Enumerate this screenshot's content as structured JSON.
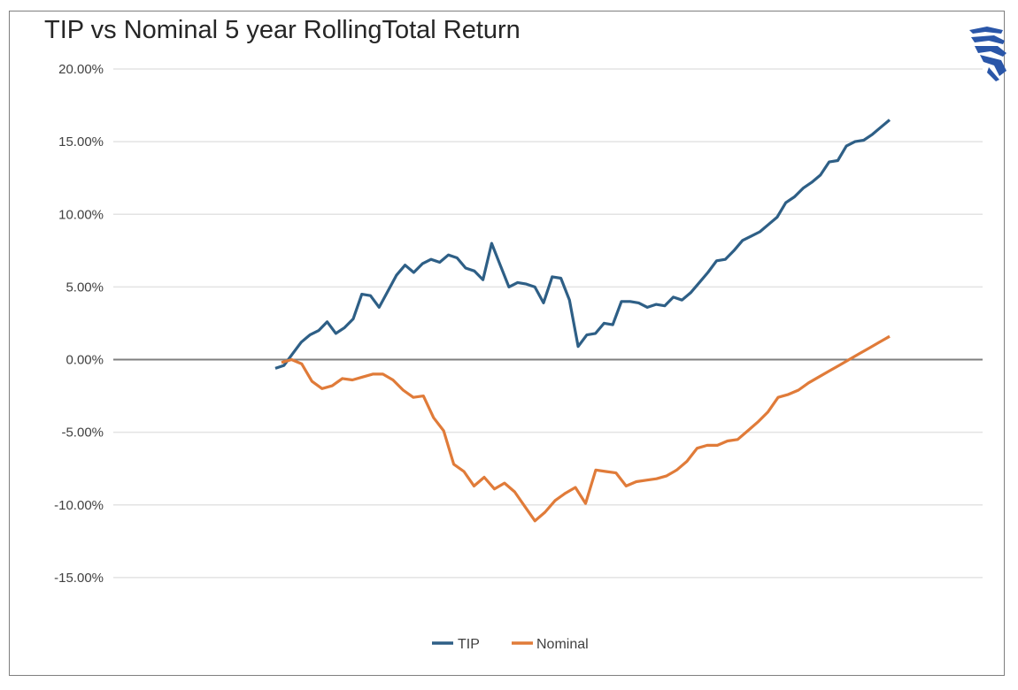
{
  "chart_data": {
    "type": "line",
    "title": "TIP vs Nominal 5 year RollingTotal Return",
    "xlabel": "",
    "ylabel": "",
    "ylim": [
      -0.2,
      0.2
    ],
    "yticks": [
      {
        "value": 0.2,
        "label": "20.00%"
      },
      {
        "value": 0.15,
        "label": "15.00%"
      },
      {
        "value": 0.1,
        "label": "10.00%"
      },
      {
        "value": 0.05,
        "label": "5.00%"
      },
      {
        "value": 0.0,
        "label": "0.00%"
      },
      {
        "value": -0.05,
        "label": "-5.00%"
      },
      {
        "value": -0.1,
        "label": "-10.00%"
      },
      {
        "value": -0.15,
        "label": "-15.00%"
      }
    ],
    "grid": true,
    "legend_position": "bottom",
    "series": [
      {
        "name": "TIP",
        "color": "#2e5f86",
        "values": [
          -0.006,
          -0.004,
          0.004,
          0.012,
          0.017,
          0.02,
          0.026,
          0.018,
          0.022,
          0.028,
          0.045,
          0.044,
          0.036,
          0.047,
          0.058,
          0.065,
          0.06,
          0.066,
          0.069,
          0.067,
          0.072,
          0.07,
          0.063,
          0.061,
          0.055,
          0.08,
          0.065,
          0.05,
          0.053,
          0.052,
          0.05,
          0.039,
          0.057,
          0.056,
          0.041,
          0.009,
          0.017,
          0.018,
          0.025,
          0.024,
          0.04,
          0.04,
          0.039,
          0.036,
          0.038,
          0.037,
          0.043,
          0.041,
          0.046,
          0.053,
          0.06,
          0.068,
          0.069,
          0.075,
          0.082,
          0.085,
          0.088,
          0.093,
          0.098,
          0.108,
          0.112,
          0.118,
          0.122,
          0.127,
          0.136,
          0.137,
          0.147,
          0.15,
          0.151,
          0.155,
          0.16,
          0.165
        ]
      },
      {
        "name": "Nominal",
        "color": "#e07b39",
        "values": [
          -0.002,
          0.0,
          -0.003,
          -0.015,
          -0.02,
          -0.018,
          -0.013,
          -0.014,
          -0.012,
          -0.01,
          -0.01,
          -0.014,
          -0.021,
          -0.026,
          -0.025,
          -0.04,
          -0.049,
          -0.072,
          -0.077,
          -0.087,
          -0.081,
          -0.089,
          -0.085,
          -0.091,
          -0.101,
          -0.111,
          -0.105,
          -0.097,
          -0.092,
          -0.088,
          -0.099,
          -0.076,
          -0.077,
          -0.078,
          -0.087,
          -0.084,
          -0.083,
          -0.082,
          -0.08,
          -0.076,
          -0.07,
          -0.061,
          -0.059,
          -0.059,
          -0.056,
          -0.055,
          -0.049,
          -0.043,
          -0.036,
          -0.026,
          -0.024,
          -0.021,
          -0.016,
          -0.012,
          -0.008,
          -0.004,
          0.0,
          0.004,
          0.008,
          0.012,
          0.016
        ]
      }
    ]
  },
  "legend": {
    "tip_label": "TIP",
    "nominal_label": "Nominal"
  }
}
